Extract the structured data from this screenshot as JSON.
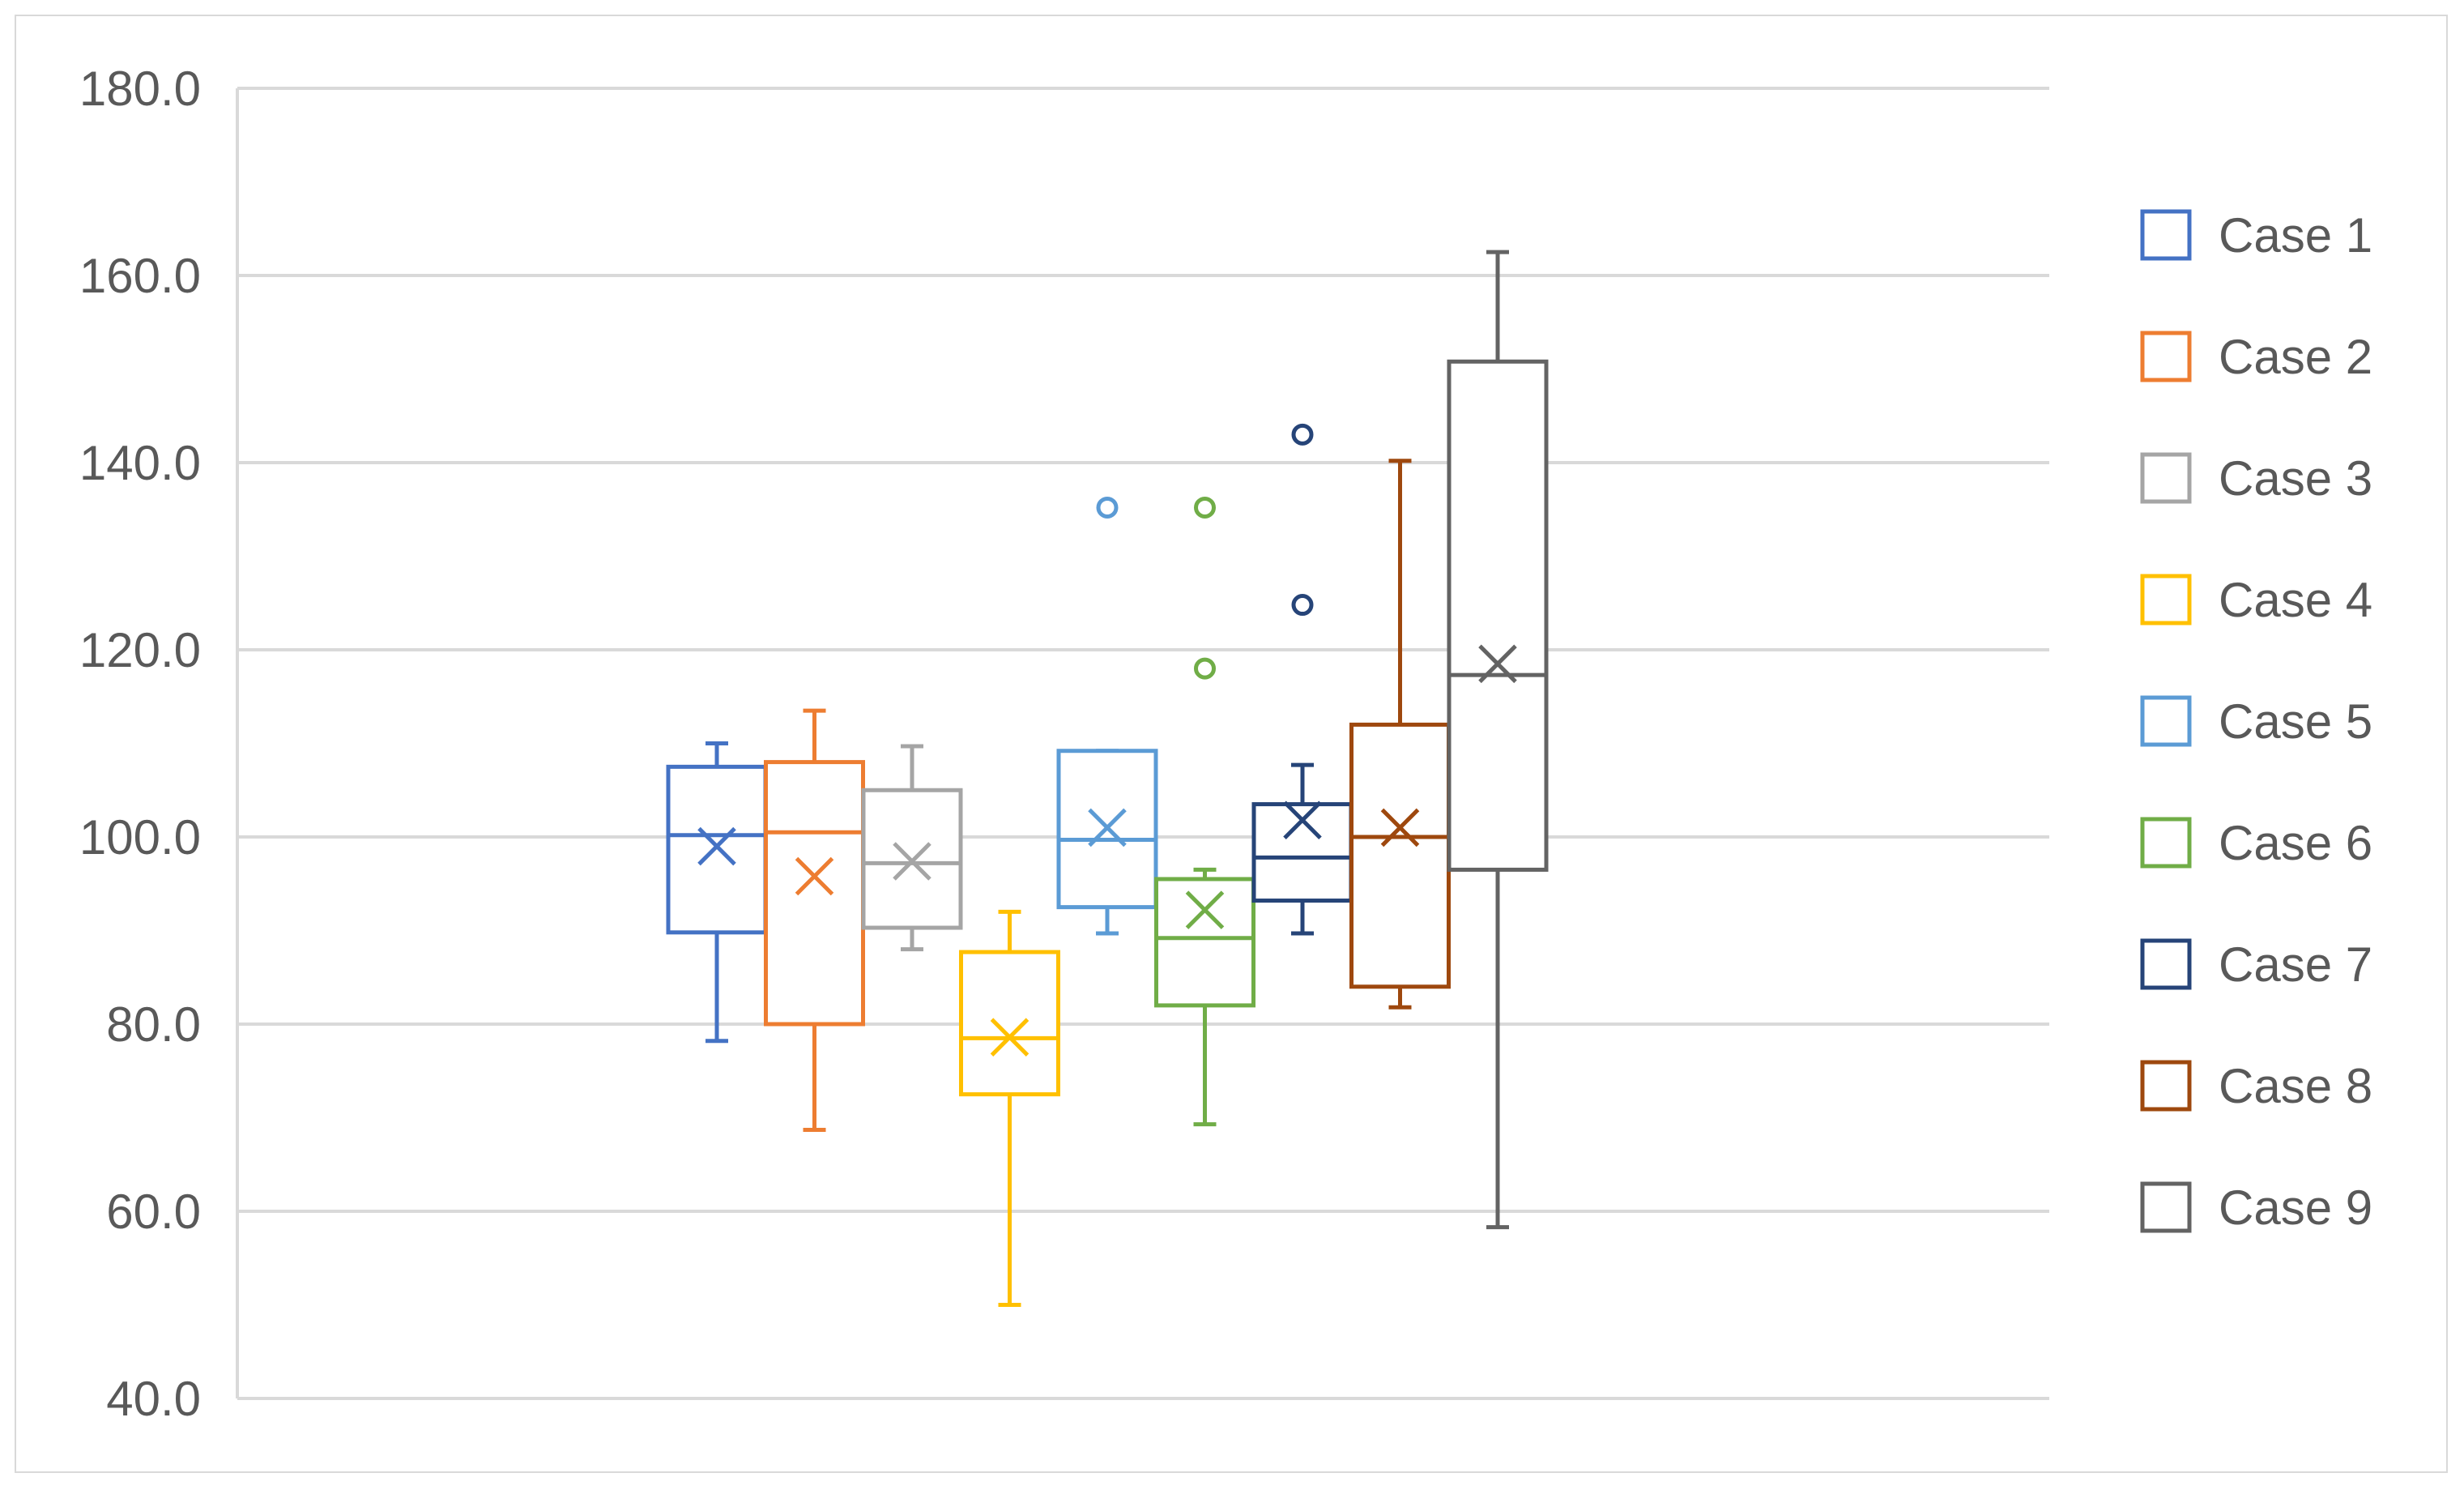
{
  "chart_data": {
    "type": "box",
    "title": "",
    "xlabel": "",
    "ylabel": "",
    "ylim": [
      40,
      180
    ],
    "yticks": [
      "40.0",
      "60.0",
      "80.0",
      "100.0",
      "120.0",
      "140.0",
      "160.0",
      "180.0"
    ],
    "grid": true,
    "legend_position": "right",
    "series": [
      {
        "name": "Case 1",
        "color": "#4472C4",
        "min": 78.2,
        "q1": 89.8,
        "median": 100.2,
        "q3": 107.5,
        "max": 110.0,
        "mean": 99.0,
        "outliers": []
      },
      {
        "name": "Case 2",
        "color": "#ED7D31",
        "min": 68.7,
        "q1": 80.0,
        "median": 100.5,
        "q3": 108.0,
        "max": 113.5,
        "mean": 95.8,
        "outliers": []
      },
      {
        "name": "Case 3",
        "color": "#A5A5A5",
        "min": 88.0,
        "q1": 90.3,
        "median": 97.2,
        "q3": 105.0,
        "max": 109.7,
        "mean": 97.4,
        "outliers": []
      },
      {
        "name": "Case 4",
        "color": "#FFC000",
        "min": 50.0,
        "q1": 72.5,
        "median": 78.5,
        "q3": 87.7,
        "max": 92.0,
        "mean": 78.6,
        "outliers": []
      },
      {
        "name": "Case 5",
        "color": "#5B9BD5",
        "min": 89.7,
        "q1": 92.5,
        "median": 99.7,
        "q3": 109.2,
        "max": 109.2,
        "mean": 101.0,
        "outliers": [
          135.2
        ]
      },
      {
        "name": "Case 6",
        "color": "#70AD47",
        "min": 69.3,
        "q1": 82.0,
        "median": 89.2,
        "q3": 95.5,
        "max": 96.5,
        "mean": 92.2,
        "outliers": [
          118.0,
          135.2
        ]
      },
      {
        "name": "Case 7",
        "color": "#264478",
        "min": 89.7,
        "q1": 93.2,
        "median": 97.8,
        "q3": 103.5,
        "max": 107.7,
        "mean": 101.8,
        "outliers": [
          124.8,
          143.0
        ]
      },
      {
        "name": "Case 8",
        "color": "#9E480E",
        "min": 81.8,
        "q1": 84.0,
        "median": 100.0,
        "q3": 112.0,
        "max": 140.2,
        "mean": 101.0,
        "outliers": []
      },
      {
        "name": "Case 9",
        "color": "#636363",
        "min": 58.3,
        "q1": 96.5,
        "median": 117.3,
        "q3": 150.8,
        "max": 162.5,
        "mean": 118.5,
        "outliers": []
      }
    ]
  },
  "colors": {
    "grid": "#d9d9d9",
    "tick_text": "#595959",
    "frame": "#d9d9d9"
  }
}
